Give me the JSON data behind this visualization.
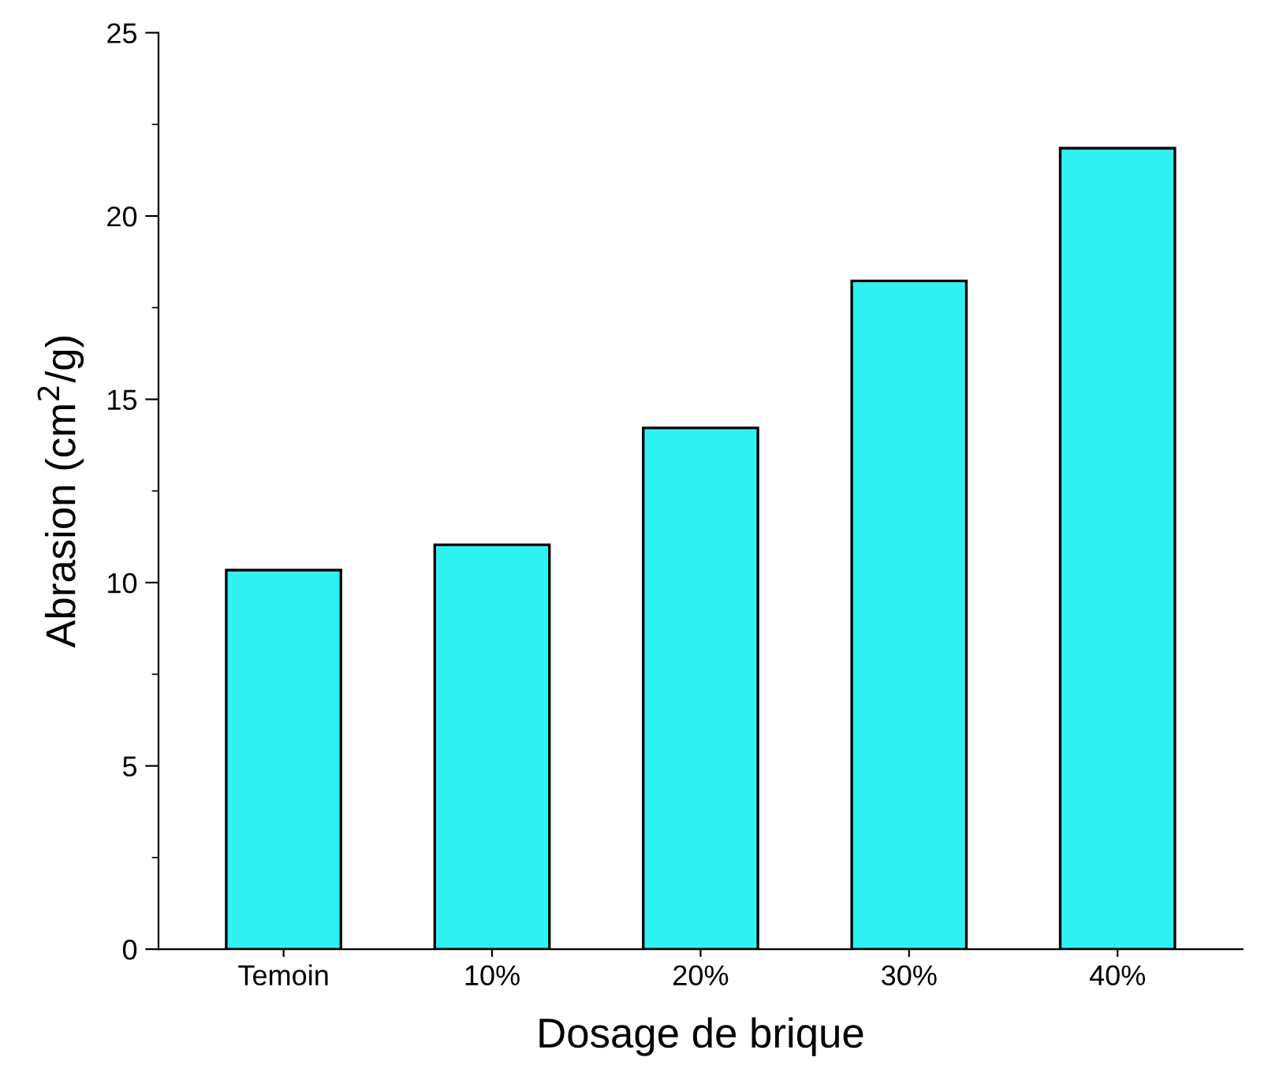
{
  "chart_data": {
    "type": "bar",
    "xlabel": "Dosage de brique",
    "ylabel": "Abrasion (cm$^{2}$/g)",
    "categories": [
      "Temoin",
      "10%",
      "20%",
      "30%",
      "40%"
    ],
    "values": [
      10.34,
      11.03,
      14.22,
      18.23,
      21.85
    ],
    "color": "#2ef2f2",
    "ylim": [
      0,
      25
    ],
    "yticks": [
      0,
      {
        "value": 2.5,
        "label": null
      },
      5,
      {
        "value": 7.5,
        "label": null
      },
      10,
      {
        "value": 12.5,
        "label": null
      },
      15,
      {
        "value": 17.5,
        "label": null
      },
      20,
      {
        "value": 22.5,
        "label": null
      },
      25
    ],
    "grid": false,
    "legend": false
  }
}
